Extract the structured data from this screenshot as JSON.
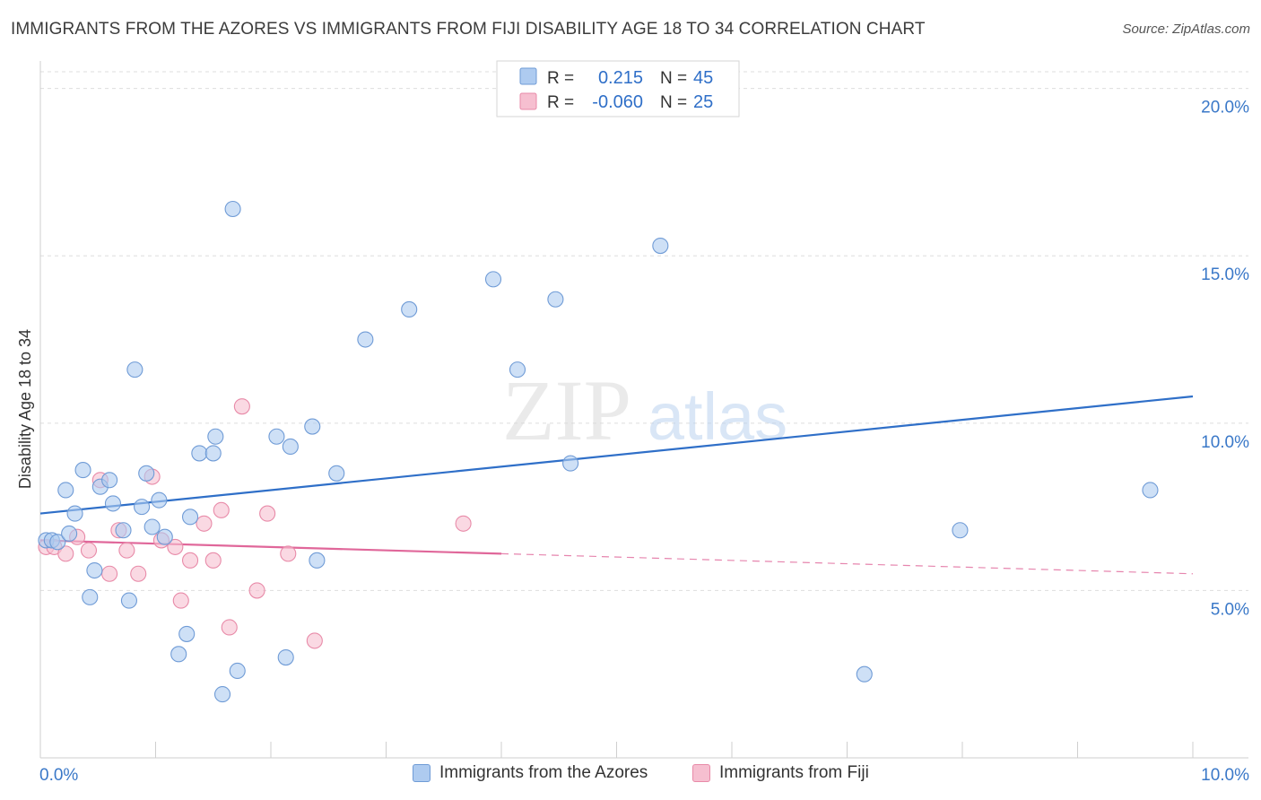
{
  "title": "IMMIGRANTS FROM THE AZORES VS IMMIGRANTS FROM FIJI DISABILITY AGE 18 TO 34 CORRELATION CHART",
  "source": "Source: ZipAtlas.com",
  "watermark": {
    "zip": "ZIP",
    "atlas": "atlas"
  },
  "colors": {
    "azores_fill": "#aecbf0",
    "azores_stroke": "#6f9bd6",
    "azores_line": "#2f6fc8",
    "fiji_fill": "#f6bfd0",
    "fiji_stroke": "#e88aa8",
    "fiji_line": "#e0679a",
    "axis_label": "#3a78c8",
    "grid": "#dddddd"
  },
  "stats_legend": [
    {
      "r_label": "R =",
      "r_value": "0.215",
      "n_label": "N =",
      "n_value": "45"
    },
    {
      "r_label": "R =",
      "r_value": "-0.060",
      "n_label": "N =",
      "n_value": "25"
    }
  ],
  "chart_data": {
    "type": "scatter",
    "title": "IMMIGRANTS FROM THE AZORES VS IMMIGRANTS FROM FIJI DISABILITY AGE 18 TO 34 CORRELATION CHART",
    "xlabel": "",
    "ylabel": "Disability Age 18 to 34",
    "xlim": [
      0,
      10
    ],
    "ylim": [
      0,
      20.5
    ],
    "x_tick_labels": [
      "0.0%",
      "10.0%"
    ],
    "y_ticks": [
      5,
      10,
      15,
      20
    ],
    "y_tick_labels": [
      "5.0%",
      "10.0%",
      "15.0%",
      "20.0%"
    ],
    "grid": true,
    "legend_position": "bottom",
    "series": [
      {
        "name": "Immigrants from the Azores",
        "trend": {
          "x": [
            0,
            10
          ],
          "y": [
            7.3,
            10.8
          ]
        },
        "points": [
          [
            0.05,
            6.5
          ],
          [
            0.1,
            6.5
          ],
          [
            0.15,
            6.45
          ],
          [
            0.22,
            8.0
          ],
          [
            0.25,
            6.7
          ],
          [
            0.3,
            7.3
          ],
          [
            0.37,
            8.6
          ],
          [
            0.43,
            4.8
          ],
          [
            0.47,
            5.6
          ],
          [
            0.52,
            8.1
          ],
          [
            0.6,
            8.3
          ],
          [
            0.63,
            7.6
          ],
          [
            0.72,
            6.8
          ],
          [
            0.77,
            4.7
          ],
          [
            0.82,
            11.6
          ],
          [
            0.88,
            7.5
          ],
          [
            0.92,
            8.5
          ],
          [
            0.97,
            6.9
          ],
          [
            1.03,
            7.7
          ],
          [
            1.08,
            6.6
          ],
          [
            1.2,
            3.1
          ],
          [
            1.27,
            3.7
          ],
          [
            1.3,
            7.2
          ],
          [
            1.38,
            9.1
          ],
          [
            1.5,
            9.1
          ],
          [
            1.52,
            9.6
          ],
          [
            1.58,
            1.9
          ],
          [
            1.67,
            16.4
          ],
          [
            1.71,
            2.6
          ],
          [
            2.05,
            9.6
          ],
          [
            2.13,
            3.0
          ],
          [
            2.17,
            9.3
          ],
          [
            2.36,
            9.9
          ],
          [
            2.4,
            5.9
          ],
          [
            2.57,
            8.5
          ],
          [
            2.82,
            12.5
          ],
          [
            3.2,
            13.4
          ],
          [
            3.93,
            14.3
          ],
          [
            4.14,
            11.6
          ],
          [
            4.47,
            13.7
          ],
          [
            4.6,
            8.8
          ],
          [
            5.38,
            15.3
          ],
          [
            7.15,
            2.5
          ],
          [
            7.98,
            6.8
          ],
          [
            9.63,
            8.0
          ]
        ]
      },
      {
        "name": "Immigrants from Fiji",
        "trend": {
          "x": [
            0,
            4.0
          ],
          "y": [
            6.5,
            6.1
          ]
        },
        "trend_dashed": {
          "x": [
            4.0,
            10
          ],
          "y": [
            6.1,
            5.5
          ]
        },
        "points": [
          [
            0.05,
            6.3
          ],
          [
            0.12,
            6.3
          ],
          [
            0.22,
            6.1
          ],
          [
            0.32,
            6.6
          ],
          [
            0.42,
            6.2
          ],
          [
            0.52,
            8.3
          ],
          [
            0.6,
            5.5
          ],
          [
            0.68,
            6.8
          ],
          [
            0.75,
            6.2
          ],
          [
            0.85,
            5.5
          ],
          [
            0.97,
            8.4
          ],
          [
            1.05,
            6.5
          ],
          [
            1.17,
            6.3
          ],
          [
            1.22,
            4.7
          ],
          [
            1.3,
            5.9
          ],
          [
            1.42,
            7.0
          ],
          [
            1.5,
            5.9
          ],
          [
            1.57,
            7.4
          ],
          [
            1.64,
            3.9
          ],
          [
            1.75,
            10.5
          ],
          [
            1.88,
            5.0
          ],
          [
            1.97,
            7.3
          ],
          [
            2.15,
            6.1
          ],
          [
            2.38,
            3.5
          ],
          [
            3.67,
            7.0
          ]
        ]
      }
    ]
  }
}
